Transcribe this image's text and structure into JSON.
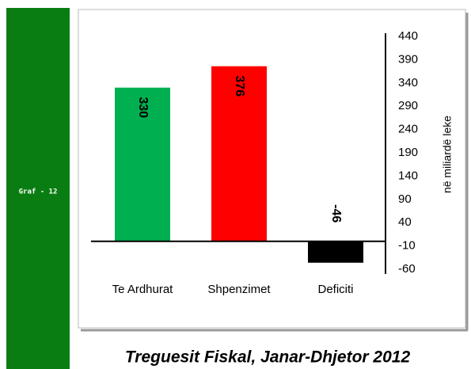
{
  "sidebar": {
    "label": "Graf - 12"
  },
  "chart_data": {
    "type": "bar",
    "title": "Treguesit Fiskal, Janar-Dhjetor 2012",
    "y_label": "në miliardë leke",
    "categories": [
      "Te Ardhurat",
      "Shpenzimet",
      "Deficiti"
    ],
    "values": [
      330,
      376,
      -46
    ],
    "colors": [
      "#00b050",
      "#ff0000",
      "#000000"
    ],
    "ylim": [
      -60,
      440
    ],
    "yticks": [
      440,
      390,
      340,
      290,
      240,
      190,
      140,
      90,
      40,
      -10,
      -60
    ],
    "grid": false
  }
}
